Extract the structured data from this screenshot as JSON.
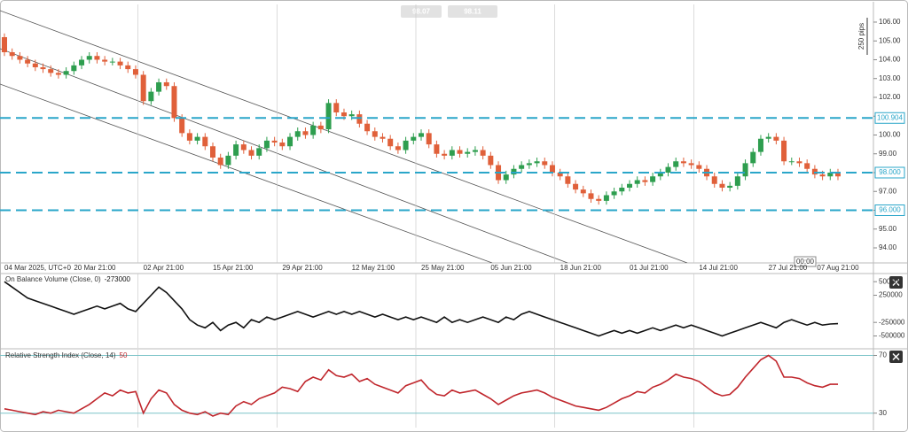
{
  "bid": 98.07,
  "ask": 98.11,
  "range_label": "250 pips",
  "crosshair_label": "00:00",
  "chart_data": [
    {
      "type": "candlestick",
      "categories": [
        "04 Mar 2025, UTC+0",
        null,
        null,
        null,
        null,
        null,
        null,
        null,
        null,
        "20 Mar 21:00",
        null,
        null,
        null,
        null,
        null,
        null,
        null,
        null,
        "02 Apr 21:00",
        null,
        null,
        null,
        null,
        null,
        null,
        null,
        null,
        "15 Apr 21:00",
        null,
        null,
        null,
        null,
        null,
        null,
        null,
        null,
        "29 Apr 21:00",
        null,
        null,
        null,
        null,
        null,
        null,
        null,
        null,
        "12 May 21:00",
        null,
        null,
        null,
        null,
        null,
        null,
        null,
        null,
        "25 May 21:00",
        null,
        null,
        null,
        null,
        null,
        null,
        null,
        null,
        "05 Jun 21:00",
        null,
        null,
        null,
        null,
        null,
        null,
        null,
        null,
        "18 Jun 21:00",
        null,
        null,
        null,
        null,
        null,
        null,
        null,
        null,
        "01 Jul 21:00",
        null,
        null,
        null,
        null,
        null,
        null,
        null,
        null,
        "14 Jul 21:00",
        null,
        null,
        null,
        null,
        null,
        null,
        null,
        null,
        "27 Jul 21:00",
        null,
        null,
        null,
        null,
        null,
        null,
        null,
        null,
        "07 Aug 21:00"
      ],
      "open": [
        105.2,
        104.4,
        104.2,
        104.0,
        103.8,
        103.6,
        103.5,
        103.3,
        103.2,
        103.4,
        103.7,
        104.0,
        104.2,
        104.0,
        103.9,
        103.9,
        103.7,
        103.5,
        103.2,
        101.8,
        102.3,
        102.8,
        102.6,
        100.9,
        100.1,
        99.7,
        99.9,
        99.4,
        98.8,
        98.4,
        98.9,
        99.5,
        99.2,
        98.9,
        99.3,
        99.7,
        99.6,
        99.4,
        99.9,
        100.2,
        100.0,
        100.5,
        100.3,
        101.7,
        101.2,
        101.0,
        101.1,
        100.6,
        100.2,
        99.9,
        99.8,
        99.4,
        99.2,
        99.7,
        99.9,
        100.1,
        99.5,
        99.0,
        98.9,
        99.2,
        99.0,
        99.1,
        99.2,
        98.9,
        98.4,
        97.6,
        97.9,
        98.2,
        98.4,
        98.5,
        98.6,
        98.4,
        98.0,
        97.8,
        97.4,
        97.1,
        96.9,
        96.6,
        96.5,
        96.8,
        97.0,
        97.2,
        97.4,
        97.6,
        97.5,
        97.8,
        98.0,
        98.3,
        98.6,
        98.5,
        98.4,
        98.2,
        97.8,
        97.4,
        97.2,
        97.3,
        97.8,
        98.5,
        99.1,
        99.8,
        99.9,
        99.7,
        98.6,
        98.6,
        98.5,
        98.2,
        97.9,
        97.8,
        98.0
      ],
      "high": [
        105.4,
        104.6,
        104.4,
        104.2,
        104.0,
        103.8,
        103.7,
        103.5,
        103.6,
        103.9,
        104.2,
        104.4,
        104.4,
        104.2,
        104.1,
        104.1,
        103.9,
        103.7,
        103.4,
        102.5,
        103.0,
        103.0,
        102.8,
        101.1,
        100.3,
        100.1,
        100.1,
        99.6,
        99.0,
        99.1,
        99.7,
        99.7,
        99.4,
        99.5,
        99.9,
        99.9,
        99.8,
        100.1,
        100.4,
        100.4,
        100.7,
        100.7,
        101.9,
        101.9,
        101.4,
        101.3,
        101.3,
        100.8,
        100.4,
        100.1,
        100.0,
        99.6,
        99.9,
        100.1,
        100.3,
        100.3,
        99.7,
        99.2,
        99.4,
        99.4,
        99.3,
        99.4,
        99.4,
        99.1,
        98.6,
        98.1,
        98.4,
        98.6,
        98.7,
        98.8,
        98.8,
        98.6,
        98.2,
        98.0,
        97.6,
        97.3,
        97.1,
        96.8,
        97.0,
        97.2,
        97.4,
        97.6,
        97.8,
        97.8,
        98.0,
        98.2,
        98.5,
        98.8,
        98.8,
        98.7,
        98.6,
        98.4,
        98.0,
        97.6,
        97.5,
        98.0,
        98.7,
        99.3,
        100.0,
        100.1,
        100.1,
        99.9,
        98.8,
        98.8,
        98.7,
        98.4,
        98.1,
        98.2,
        98.2
      ],
      "low": [
        104.2,
        104.0,
        103.8,
        103.6,
        103.4,
        103.3,
        103.1,
        103.0,
        103.0,
        103.2,
        103.5,
        103.8,
        103.8,
        103.7,
        103.7,
        103.5,
        103.3,
        103.0,
        101.6,
        101.6,
        102.1,
        102.4,
        100.7,
        99.9,
        99.5,
        99.5,
        99.2,
        98.6,
        98.2,
        98.2,
        98.7,
        99.0,
        98.7,
        98.7,
        99.1,
        99.4,
        99.2,
        99.2,
        99.7,
        99.8,
        99.8,
        100.1,
        100.1,
        101.0,
        100.8,
        100.8,
        100.4,
        100.0,
        99.7,
        99.6,
        99.2,
        99.0,
        99.0,
        99.5,
        99.7,
        99.3,
        98.8,
        98.7,
        98.7,
        98.8,
        98.8,
        98.9,
        98.7,
        98.2,
        97.4,
        97.4,
        97.7,
        98.0,
        98.2,
        98.3,
        98.2,
        97.8,
        97.6,
        97.2,
        96.9,
        96.7,
        96.4,
        96.3,
        96.3,
        96.6,
        96.8,
        97.0,
        97.2,
        97.3,
        97.3,
        97.6,
        97.8,
        98.1,
        98.3,
        98.2,
        98.0,
        97.6,
        97.2,
        97.0,
        97.0,
        97.1,
        97.6,
        98.3,
        98.9,
        99.6,
        99.5,
        98.4,
        98.4,
        98.3,
        98.0,
        97.7,
        97.6,
        97.6,
        97.6
      ],
      "close": [
        104.4,
        104.2,
        104.0,
        103.8,
        103.6,
        103.5,
        103.3,
        103.2,
        103.4,
        103.7,
        104.0,
        104.2,
        104.0,
        103.9,
        103.9,
        103.7,
        103.5,
        103.2,
        101.8,
        102.3,
        102.8,
        102.6,
        100.9,
        100.1,
        99.7,
        99.9,
        99.4,
        98.8,
        98.4,
        98.9,
        99.5,
        99.2,
        98.9,
        99.3,
        99.7,
        99.6,
        99.4,
        99.9,
        100.2,
        100.0,
        100.5,
        100.3,
        101.7,
        101.2,
        101.0,
        101.1,
        100.6,
        100.2,
        99.9,
        99.8,
        99.4,
        99.2,
        99.7,
        99.9,
        100.1,
        99.5,
        99.0,
        98.9,
        99.2,
        99.0,
        99.1,
        99.2,
        98.9,
        98.4,
        97.6,
        97.9,
        98.2,
        98.4,
        98.5,
        98.6,
        98.4,
        98.0,
        97.8,
        97.4,
        97.1,
        96.9,
        96.6,
        96.5,
        96.8,
        97.0,
        97.2,
        97.4,
        97.6,
        97.5,
        97.8,
        98.0,
        98.3,
        98.6,
        98.5,
        98.4,
        98.2,
        97.8,
        97.4,
        97.2,
        97.3,
        97.8,
        98.5,
        99.1,
        99.8,
        99.9,
        99.7,
        98.6,
        98.6,
        98.5,
        98.2,
        97.9,
        97.8,
        98.0,
        97.8
      ],
      "up_color": "#2e9e4f",
      "down_color": "#e0603a",
      "ylim": [
        93.2,
        106.94
      ],
      "yticks": [
        {
          "value": 106,
          "label": "106.00"
        },
        {
          "value": 105,
          "label": "105.00"
        },
        {
          "value": 104,
          "label": "104.00"
        },
        {
          "value": 103,
          "label": "103.00"
        },
        {
          "value": 102,
          "label": "102.00"
        },
        {
          "value": 101,
          "label": "101.00"
        },
        {
          "value": 100,
          "label": "100.00"
        },
        {
          "value": 99,
          "label": "99.00"
        },
        {
          "value": 98,
          "label": "98.00"
        },
        {
          "value": 97,
          "label": "97.00"
        },
        {
          "value": 96,
          "label": "96.00"
        },
        {
          "value": 95,
          "label": "95.00"
        },
        {
          "value": 94,
          "label": "94.00"
        }
      ],
      "levels": [
        {
          "value": 100.904,
          "label": "100.904"
        },
        {
          "value": 98,
          "label": "98.000"
        },
        {
          "value": 96,
          "label": "96.000"
        }
      ],
      "level_color": "#2aa6c9"
    },
    {
      "type": "line",
      "title": "On Balance Volume (Close, 0)",
      "current_value": -273000,
      "color": "#111111",
      "values": [
        500000,
        400000,
        300000,
        200000,
        150000,
        100000,
        50000,
        0,
        -50000,
        -100000,
        -50000,
        0,
        50000,
        0,
        50000,
        100000,
        0,
        -50000,
        100000,
        250000,
        400000,
        300000,
        150000,
        0,
        -200000,
        -300000,
        -350000,
        -250000,
        -400000,
        -300000,
        -250000,
        -350000,
        -200000,
        -250000,
        -150000,
        -200000,
        -150000,
        -100000,
        -50000,
        -100000,
        -150000,
        -100000,
        -50000,
        -100000,
        -50000,
        -100000,
        -50000,
        -100000,
        -150000,
        -100000,
        -150000,
        -200000,
        -150000,
        -200000,
        -150000,
        -200000,
        -250000,
        -150000,
        -250000,
        -200000,
        -250000,
        -200000,
        -150000,
        -200000,
        -250000,
        -150000,
        -200000,
        -100000,
        -50000,
        -100000,
        -150000,
        -200000,
        -250000,
        -300000,
        -350000,
        -400000,
        -450000,
        -500000,
        -450000,
        -400000,
        -450000,
        -400000,
        -450000,
        -400000,
        -350000,
        -400000,
        -350000,
        -300000,
        -350000,
        -300000,
        -350000,
        -400000,
        -450000,
        -500000,
        -450000,
        -400000,
        -350000,
        -300000,
        -250000,
        -300000,
        -350000,
        -250000,
        -200000,
        -250000,
        -300000,
        -250000,
        -300000,
        -280000,
        -273000
      ],
      "ylim": [
        -720000,
        650000
      ],
      "yticks": [
        500000,
        250000,
        -250000,
        -500000
      ]
    },
    {
      "type": "line",
      "title": "Relative Strength Index (Close, 14)",
      "current_value": 50,
      "color": "#c0262c",
      "values": [
        33,
        32,
        31,
        30,
        29,
        31,
        30,
        32,
        31,
        30,
        33,
        36,
        40,
        44,
        42,
        46,
        44,
        45,
        30,
        40,
        46,
        44,
        36,
        32,
        30,
        29,
        31,
        28,
        30,
        29,
        35,
        38,
        36,
        40,
        42,
        44,
        48,
        47,
        45,
        52,
        55,
        53,
        60,
        56,
        55,
        57,
        52,
        54,
        50,
        48,
        46,
        44,
        49,
        51,
        53,
        47,
        43,
        42,
        46,
        44,
        45,
        46,
        43,
        40,
        36,
        39,
        42,
        44,
        45,
        46,
        44,
        41,
        39,
        37,
        35,
        34,
        33,
        32,
        34,
        37,
        40,
        42,
        45,
        44,
        48,
        50,
        53,
        57,
        55,
        54,
        52,
        48,
        44,
        42,
        43,
        48,
        55,
        61,
        67,
        70,
        66,
        55,
        55,
        54,
        51,
        49,
        48,
        50,
        50
      ],
      "ylim": [
        20,
        74
      ],
      "yticks": [
        70,
        30
      ],
      "grid": true,
      "grid_color": "#7cc4c8"
    }
  ]
}
